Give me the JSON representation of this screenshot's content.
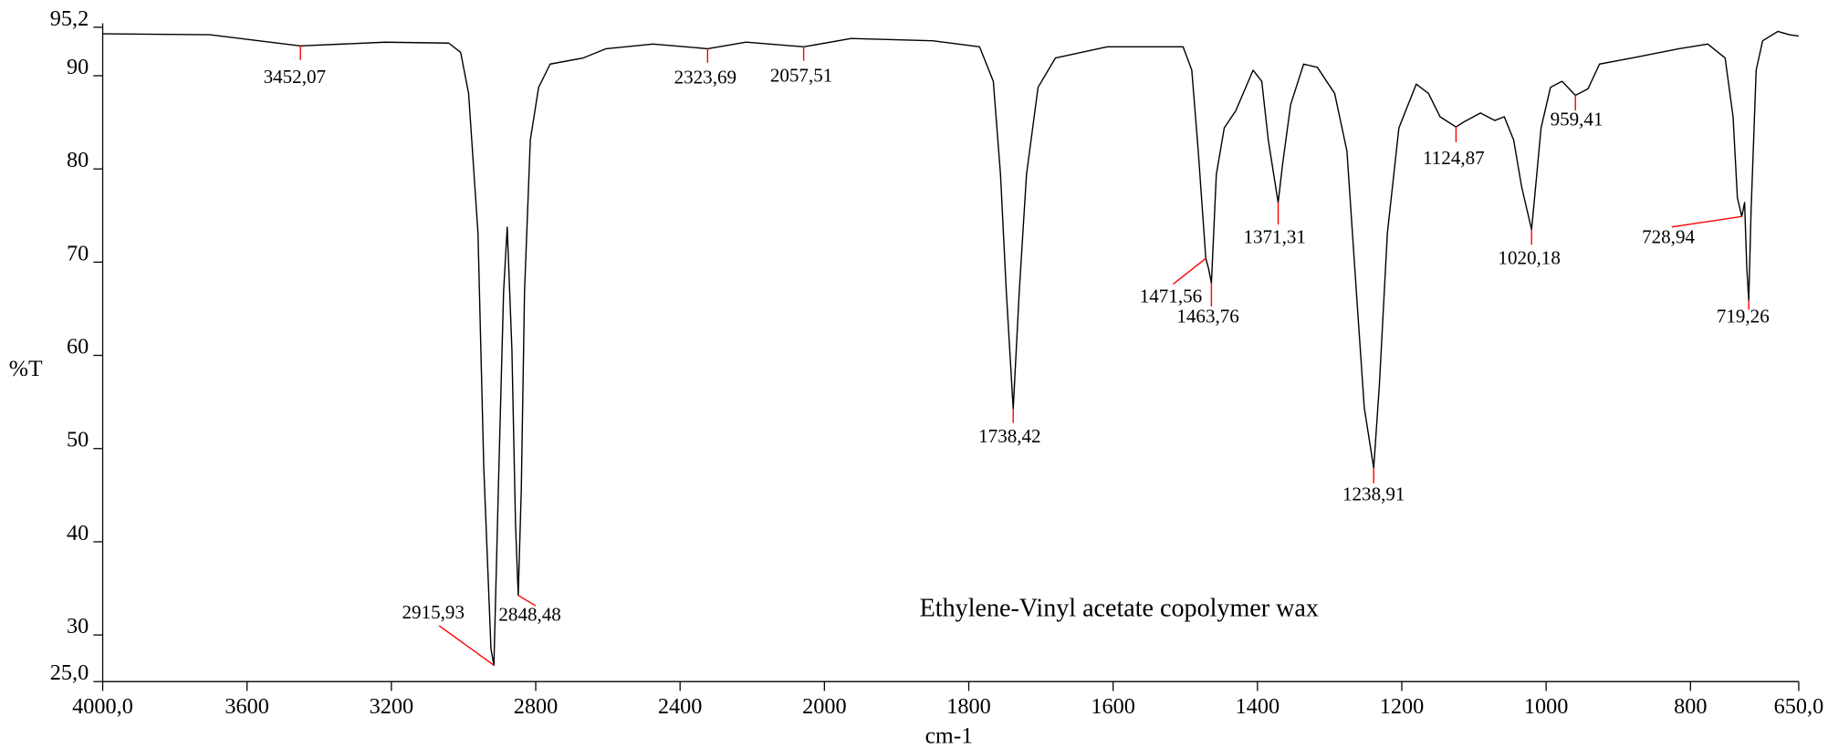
{
  "chart_data": {
    "type": "line",
    "title": "Ethylene-Vinyl acetate copolymer wax",
    "xlabel": "cm-1",
    "ylabel": "%T",
    "color": "#000000",
    "annotation_color": "#ff0000",
    "x_expansion": {
      "below": 2000,
      "factor": 2
    },
    "xlim": [
      4000,
      650
    ],
    "ylim": [
      25,
      95.2
    ],
    "xticks": [
      {
        "value": 4000,
        "label": "4000,0"
      },
      3600,
      3200,
      2800,
      2400,
      2000,
      1800,
      1600,
      1400,
      1200,
      1000,
      800,
      {
        "value": 650,
        "label": "650,0"
      }
    ],
    "yticks": [
      {
        "value": 25,
        "label": "25,0"
      },
      30,
      40,
      50,
      60,
      70,
      80,
      90,
      {
        "value": 95.2,
        "label": "95,2"
      }
    ],
    "x": [
      4000,
      3703,
      3452.07,
      3218,
      3041,
      3008,
      2986,
      2960,
      2944,
      2924,
      2915.93,
      2902,
      2889,
      2879,
      2866,
      2856,
      2848.48,
      2840,
      2831,
      2815,
      2792,
      2760,
      2669,
      2605,
      2475,
      2323.69,
      2217,
      2057.51,
      1963,
      1850,
      1785,
      1766,
      1756,
      1748,
      1738.42,
      1730,
      1720,
      1704,
      1680,
      1608,
      1503,
      1491,
      1482,
      1471.56,
      1468,
      1463.76,
      1457,
      1446,
      1430,
      1406,
      1394,
      1385,
      1371.31,
      1365,
      1354,
      1336,
      1317,
      1293,
      1276,
      1263,
      1252,
      1238.91,
      1231,
      1220,
      1204,
      1180,
      1163,
      1147,
      1124.87,
      1115,
      1091,
      1071,
      1058,
      1045,
      1034,
      1020.18,
      1016,
      1007,
      994,
      978,
      959.41,
      942,
      926,
      881,
      816,
      776,
      752,
      741,
      735,
      728.94,
      725,
      722,
      719.26,
      716,
      709,
      700,
      679,
      663,
      650
    ],
    "values": [
      94.5,
      94.4,
      93.2,
      93.6,
      93.5,
      92.5,
      88.1,
      73.1,
      48,
      28.5,
      26.75,
      48,
      66.9,
      73.75,
      60.6,
      41.9,
      34.25,
      45.6,
      66.9,
      83.1,
      88.75,
      91.25,
      91.9,
      92.9,
      93.4,
      92.9,
      93.6,
      93.1,
      94,
      93.75,
      93.1,
      89.4,
      79.4,
      66.9,
      54.25,
      66.9,
      79.4,
      88.75,
      91.9,
      93.1,
      93.1,
      90.6,
      81.9,
      70.4,
      69.4,
      67.75,
      79.4,
      84.4,
      86.25,
      90.6,
      89.4,
      83.1,
      76.4,
      80.6,
      86.9,
      91.25,
      90.9,
      88.1,
      81.9,
      66.9,
      54.4,
      47.9,
      56.9,
      73.1,
      84.4,
      89.1,
      88.1,
      85.6,
      84.5,
      85,
      86,
      85.2,
      85.6,
      83.1,
      78.1,
      73.5,
      76.9,
      84.4,
      88.75,
      89.4,
      87.9,
      88.6,
      91.25,
      91.9,
      92.9,
      93.4,
      91.9,
      85.6,
      76.9,
      74.9,
      76.4,
      69.4,
      65.9,
      75.6,
      90.6,
      93.75,
      94.75,
      94.4,
      94.25
    ],
    "annotations": [
      {
        "x": 3452.07,
        "y": 93.2,
        "label": "3452,07"
      },
      {
        "x": 2323.69,
        "y": 92.9,
        "label": "2323,69"
      },
      {
        "x": 2057.51,
        "y": 93.1,
        "label": "2057,51"
      },
      {
        "x": 2915.93,
        "y": 26.75,
        "label": "2915,93"
      },
      {
        "x": 2848.48,
        "y": 34.25,
        "label": "2848,48"
      },
      {
        "x": 1738.42,
        "y": 54.25,
        "label": "1738,42"
      },
      {
        "x": 1471.56,
        "y": 70.4,
        "label": "1471,56"
      },
      {
        "x": 1463.76,
        "y": 67.75,
        "label": "1463,76"
      },
      {
        "x": 1371.31,
        "y": 76.4,
        "label": "1371,31"
      },
      {
        "x": 1238.91,
        "y": 47.9,
        "label": "1238,91"
      },
      {
        "x": 1124.87,
        "y": 84.5,
        "label": "1124,87"
      },
      {
        "x": 1020.18,
        "y": 73.5,
        "label": "1020,18"
      },
      {
        "x": 959.41,
        "y": 87.9,
        "label": "959,41"
      },
      {
        "x": 728.94,
        "y": 74.9,
        "label": "728,94"
      },
      {
        "x": 719.26,
        "y": 65.9,
        "label": "719,26"
      }
    ]
  }
}
